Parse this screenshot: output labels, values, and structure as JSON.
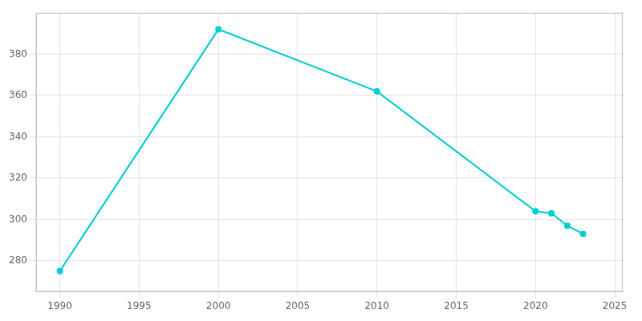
{
  "chart_data": {
    "type": "line",
    "x": [
      1990,
      2000,
      2010,
      2020,
      2021,
      2022,
      2023
    ],
    "values": [
      275,
      392,
      362,
      304,
      303,
      297,
      293
    ],
    "color": "#00CED1",
    "marker": "circle",
    "xlim": [
      1988.5,
      2025.5
    ],
    "ylim": [
      265,
      400
    ],
    "xticks": [
      1990,
      1995,
      2000,
      2005,
      2010,
      2015,
      2020,
      2025
    ],
    "yticks": [
      280,
      300,
      320,
      340,
      360,
      380
    ],
    "grid": true
  }
}
